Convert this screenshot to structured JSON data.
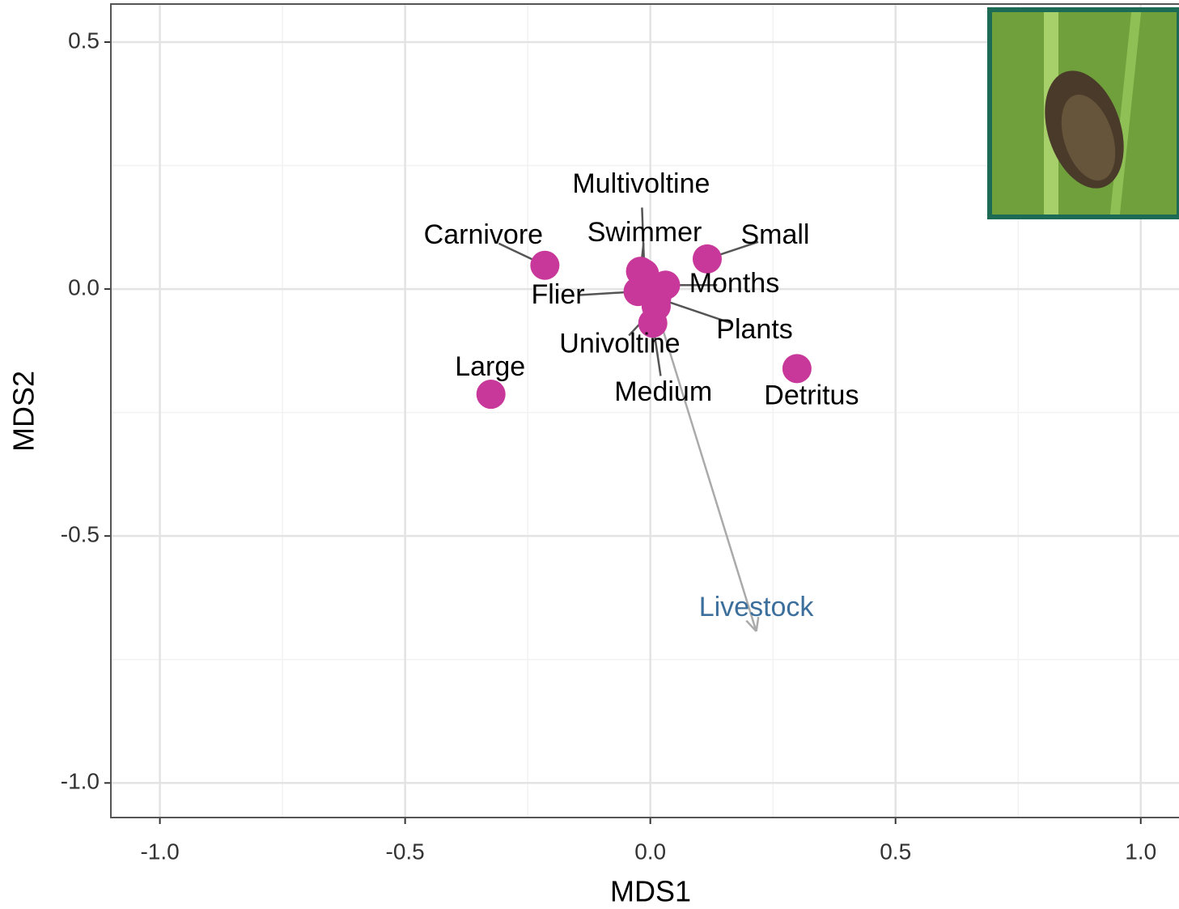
{
  "chart_data": {
    "type": "scatter",
    "xlabel": "MDS1",
    "ylabel": "MDS2",
    "labels": [
      "Multivoltine",
      "Carnivore",
      "Swimmer",
      "Small",
      "Months",
      "Flier",
      "Plants",
      "Univoltine",
      "Medium",
      "Large",
      "Detritus"
    ],
    "x": [
      -0.012,
      -0.215,
      -0.02,
      0.116,
      0.031,
      -0.025,
      0.013,
      0.012,
      0.005,
      -0.325,
      0.299
    ],
    "values": [
      0.031,
      0.048,
      0.036,
      0.061,
      0.008,
      -0.005,
      -0.018,
      -0.035,
      -0.069,
      -0.213,
      -0.161
    ],
    "color": "#c8389a",
    "arrows": [
      {
        "label": "Livestock",
        "x": 0.216,
        "y": -0.693,
        "color": "#3d6f9c"
      }
    ],
    "xlim": [
      -1.1,
      1.078
    ],
    "ylim": [
      -1.07,
      0.577
    ],
    "xticks": [
      {
        "value": -1.0,
        "label": "-1.0"
      },
      -0.5,
      {
        "value": 0.0,
        "label": "0.0"
      },
      0.5,
      {
        "value": 1.0,
        "label": "1.0"
      }
    ],
    "yticks": [
      {
        "value": -1.0,
        "label": "-1.0"
      },
      -0.5,
      {
        "value": 0.0,
        "label": "0.0"
      },
      0.5
    ],
    "xminorticks": [
      -0.75,
      -0.25,
      0.25,
      0.75
    ],
    "yminorticks": [
      -0.75,
      -0.25,
      0.25
    ],
    "grid": true
  }
}
